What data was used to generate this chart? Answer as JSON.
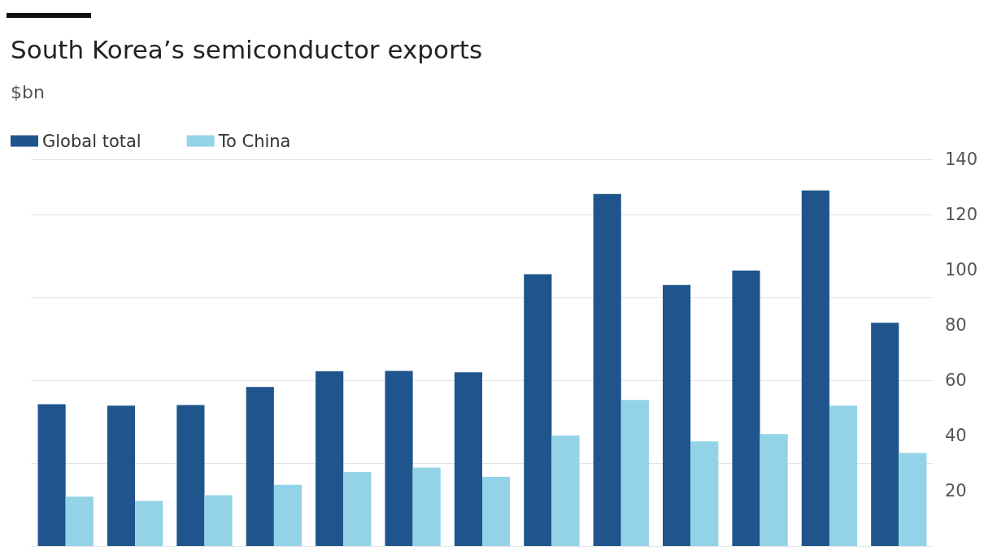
{
  "chart_data": {
    "type": "bar",
    "title": "South Korea’s semiconductor exports",
    "subtitle": "$bn",
    "categories": [
      null,
      null,
      null,
      null,
      null,
      null,
      null,
      null,
      null,
      null,
      null,
      null,
      null
    ],
    "series": [
      {
        "name": "Global total",
        "color": "#1f558c",
        "values": [
          51.3,
          50.8,
          51,
          57.6,
          63.2,
          63.4,
          62.9,
          98.4,
          127.4,
          94.5,
          99.7,
          128.7,
          80.8
        ]
      },
      {
        "name": "To China",
        "color": "#93d3e8",
        "values": [
          17.9,
          16.3,
          18.4,
          22.1,
          26.8,
          28.4,
          25,
          40,
          52.9,
          37.9,
          40.5,
          50.8,
          33.7
        ]
      }
    ],
    "ylim": [
      0,
      140
    ],
    "yticks": [
      20,
      40,
      60,
      80,
      100,
      120,
      140
    ],
    "grid": "y",
    "legend": "top left"
  }
}
